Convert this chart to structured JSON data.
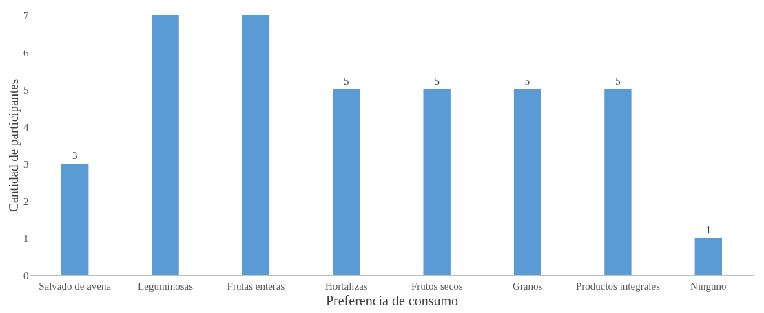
{
  "chart_data": {
    "type": "bar",
    "xlabel": "Preferencia de consumo",
    "ylabel": "Cantidad de participantes",
    "categories": [
      "Salvado de avena",
      "Leguminosas",
      "Frutas enteras",
      "Hortalizas",
      "Frutos secos",
      "Granos",
      "Productos integrales",
      "Ninguno"
    ],
    "values": [
      3,
      7,
      7,
      5,
      5,
      5,
      5,
      1
    ],
    "value_labels": [
      "3",
      null,
      null,
      "5",
      "5",
      "5",
      "5",
      "1"
    ],
    "color": "#5b9bd5",
    "ylim": [
      0,
      7
    ],
    "yticks": [
      0,
      1,
      2,
      3,
      4,
      5,
      6,
      7
    ]
  }
}
